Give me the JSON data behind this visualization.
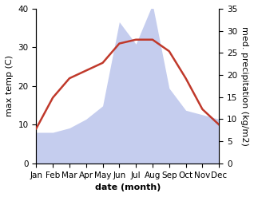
{
  "months": [
    "Jan",
    "Feb",
    "Mar",
    "Apr",
    "May",
    "Jun",
    "Jul",
    "Aug",
    "Sep",
    "Oct",
    "Nov",
    "Dec"
  ],
  "temperature": [
    9,
    17,
    22,
    24,
    26,
    31,
    32,
    32,
    29,
    22,
    14,
    10
  ],
  "precipitation": [
    7,
    7,
    8,
    10,
    13,
    32,
    27,
    36,
    17,
    12,
    11,
    10
  ],
  "temp_color": "#c0392b",
  "precip_color": "#adb8e8",
  "left_ylim": [
    0,
    40
  ],
  "right_ylim": [
    0,
    35
  ],
  "left_yticks": [
    0,
    10,
    20,
    30,
    40
  ],
  "right_yticks": [
    0,
    5,
    10,
    15,
    20,
    25,
    30,
    35
  ],
  "xlabel": "date (month)",
  "ylabel_left": "max temp (C)",
  "ylabel_right": "med. precipitation (kg/m2)",
  "label_fontsize": 8,
  "tick_fontsize": 7.5
}
